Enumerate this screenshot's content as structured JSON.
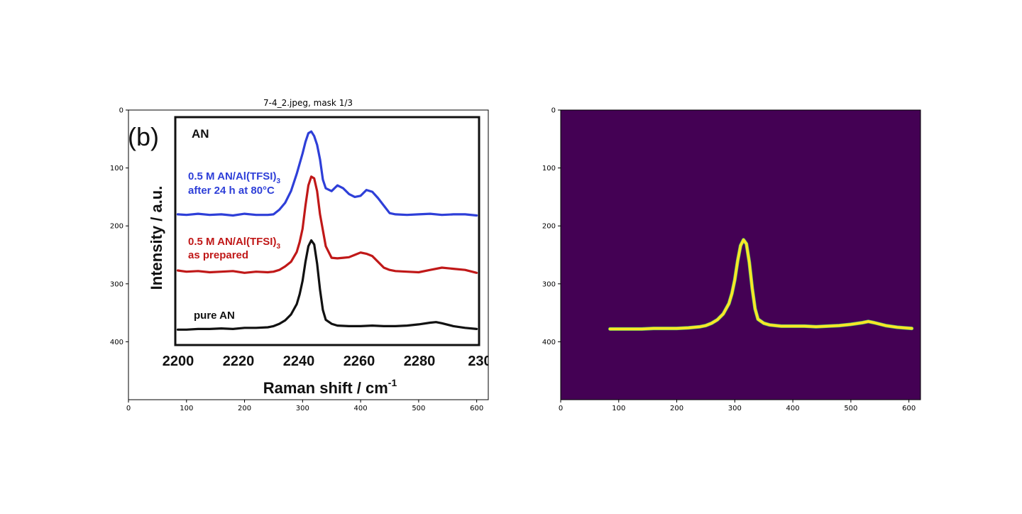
{
  "figure": {
    "left_title": "7-4_2.jpeg, mask 1/3"
  },
  "colors": {
    "blue_series": "#2e3fd8",
    "red_series": "#c01818",
    "black_series": "#111111",
    "mask_background": "#440154",
    "mask_line": "#fde725",
    "mask_line_edge": "#5ec962"
  },
  "chart_data": [
    {
      "type": "line",
      "title": "7-4_2.jpeg, mask 1/3",
      "xlabel": "",
      "ylabel": "",
      "xlim": [
        0,
        620
      ],
      "ylim": [
        500,
        0
      ],
      "xticks": [
        "0",
        "100",
        "200",
        "300",
        "400",
        "500",
        "600"
      ],
      "yticks": [
        "0",
        "100",
        "200",
        "300",
        "400"
      ],
      "image_content": {
        "panel_label": "(b)",
        "xlabel": "Raman shift / cm",
        "xlabel_sup": "-1",
        "ylabel": "Intensity / a.u.",
        "xticks": [
          "2200",
          "2220",
          "2240",
          "2260",
          "2280",
          "230"
        ],
        "labels": {
          "an": "AN",
          "blue_line1": "0.5 M AN/Al(TFSI)",
          "blue_line1_sub": "3",
          "blue_line2": "after 24 h at 80°C",
          "red_line1": "0.5 M AN/Al(TFSI)",
          "red_line1_sub": "3",
          "red_line2": "as prepared",
          "black": "pure AN"
        },
        "series": [
          {
            "color": "#2e3fd8",
            "x": [
              85,
              100,
              120,
              140,
              160,
              180,
              200,
              220,
              240,
              250,
              260,
              270,
              280,
              290,
              300,
              305,
              310,
              315,
              320,
              325,
              330,
              335,
              340,
              350,
              360,
              370,
              380,
              390,
              400,
              410,
              420,
              430,
              440,
              450,
              460,
              480,
              500,
              520,
              540,
              560,
              580,
              600
            ],
            "y": [
              180,
              181,
              179,
              181,
              180,
              182,
              179,
              181,
              181,
              180,
              172,
              160,
              140,
              110,
              75,
              55,
              40,
              37,
              45,
              60,
              85,
              120,
              135,
              140,
              130,
              135,
              145,
              150,
              148,
              138,
              141,
              152,
              165,
              178,
              180,
              181,
              180,
              179,
              181,
              180,
              180,
              182
            ]
          },
          {
            "color": "#c01818",
            "x": [
              85,
              100,
              120,
              140,
              160,
              180,
              200,
              220,
              240,
              250,
              260,
              270,
              280,
              290,
              295,
              300,
              305,
              310,
              315,
              320,
              325,
              330,
              340,
              350,
              360,
              370,
              380,
              390,
              400,
              410,
              420,
              430,
              440,
              450,
              460,
              480,
              500,
              520,
              540,
              560,
              580,
              600
            ],
            "y": [
              277,
              279,
              278,
              280,
              279,
              278,
              281,
              279,
              280,
              279,
              276,
              270,
              262,
              245,
              228,
              205,
              165,
              130,
              115,
              118,
              140,
              180,
              235,
              255,
              256,
              255,
              254,
              250,
              246,
              248,
              252,
              262,
              272,
              276,
              278,
              279,
              280,
              276,
              272,
              274,
              276,
              281
            ]
          },
          {
            "color": "#111111",
            "x": [
              85,
              100,
              120,
              140,
              160,
              180,
              200,
              220,
              240,
              250,
              260,
              270,
              280,
              290,
              295,
              300,
              305,
              310,
              315,
              320,
              325,
              330,
              335,
              340,
              350,
              360,
              380,
              400,
              420,
              440,
              460,
              480,
              500,
              520,
              530,
              540,
              560,
              580,
              600
            ],
            "y": [
              379,
              379,
              378,
              378,
              377,
              378,
              376,
              376,
              375,
              373,
              369,
              363,
              353,
              335,
              318,
              295,
              262,
              235,
              225,
              232,
              265,
              310,
              345,
              362,
              369,
              372,
              373,
              373,
              372,
              373,
              373,
              372,
              370,
              367,
              366,
              368,
              373,
              376,
              378
            ]
          }
        ]
      }
    },
    {
      "type": "line",
      "title": "",
      "xlabel": "",
      "ylabel": "",
      "xlim": [
        0,
        620
      ],
      "ylim": [
        500,
        0
      ],
      "xticks": [
        "0",
        "100",
        "200",
        "300",
        "400",
        "500",
        "600"
      ],
      "yticks": [
        "0",
        "100",
        "200",
        "300",
        "400"
      ],
      "series": [
        {
          "color": "#fde725",
          "x": [
            85,
            100,
            120,
            140,
            160,
            180,
            200,
            220,
            240,
            250,
            260,
            270,
            280,
            290,
            295,
            300,
            305,
            310,
            315,
            320,
            325,
            330,
            335,
            340,
            350,
            360,
            380,
            400,
            420,
            440,
            460,
            480,
            500,
            520,
            530,
            540,
            560,
            580,
            605
          ],
          "y": [
            378,
            378,
            378,
            378,
            377,
            377,
            377,
            376,
            374,
            372,
            368,
            362,
            352,
            334,
            317,
            293,
            260,
            234,
            224,
            231,
            263,
            308,
            343,
            361,
            368,
            371,
            373,
            373,
            373,
            374,
            373,
            372,
            370,
            367,
            365,
            367,
            372,
            375,
            377
          ]
        }
      ]
    }
  ]
}
